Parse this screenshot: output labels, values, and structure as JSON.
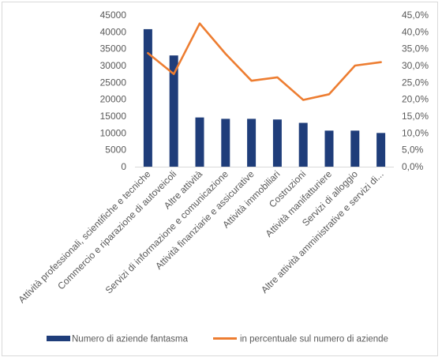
{
  "chart_data": {
    "type": "bar",
    "title": "",
    "xlabel": "",
    "ylabel": "",
    "categories": [
      "Attività professionali, scientifiche e tecniche",
      "Commercio e riparazione di autoveicoli",
      "Altre attività",
      "Servizi di informazione e comunicazione",
      "Attività finanziarie e assicurative",
      "Attività immobiliari",
      "Costruzioni",
      "Attività manifatturiere",
      "Servizi di alloggio",
      "Altre attività amministrative e servizi di..."
    ],
    "series": [
      {
        "name": "Numero di aziende fantasma",
        "type": "bar",
        "axis": "left",
        "color": "#1f3d7a",
        "values": [
          40800,
          33000,
          14600,
          14200,
          14200,
          14000,
          13000,
          10700,
          10700,
          10000
        ]
      },
      {
        "name": "in percentuale sul numero di aziende",
        "type": "line",
        "axis": "right",
        "color": "#ed7d31",
        "values": [
          0.337,
          0.275,
          0.425,
          0.335,
          0.255,
          0.265,
          0.198,
          0.215,
          0.3,
          0.31
        ]
      }
    ],
    "y_left": {
      "ylim": [
        0,
        45000
      ],
      "ticks": [
        0,
        5000,
        10000,
        15000,
        20000,
        25000,
        30000,
        35000,
        40000,
        45000
      ],
      "tick_labels": [
        "0",
        "5000",
        "10000",
        "15000",
        "20000",
        "25000",
        "30000",
        "35000",
        "40000",
        "45000"
      ]
    },
    "y_right": {
      "ylim": [
        0,
        0.45
      ],
      "ticks": [
        0,
        0.05,
        0.1,
        0.15,
        0.2,
        0.25,
        0.3,
        0.35,
        0.4,
        0.45
      ],
      "tick_labels": [
        "0,0%",
        "5,0%",
        "10,0%",
        "15,0%",
        "20,0%",
        "25,0%",
        "30,0%",
        "35,0%",
        "40,0%",
        "45,0%"
      ]
    },
    "grid": false,
    "legend": "bottom"
  }
}
